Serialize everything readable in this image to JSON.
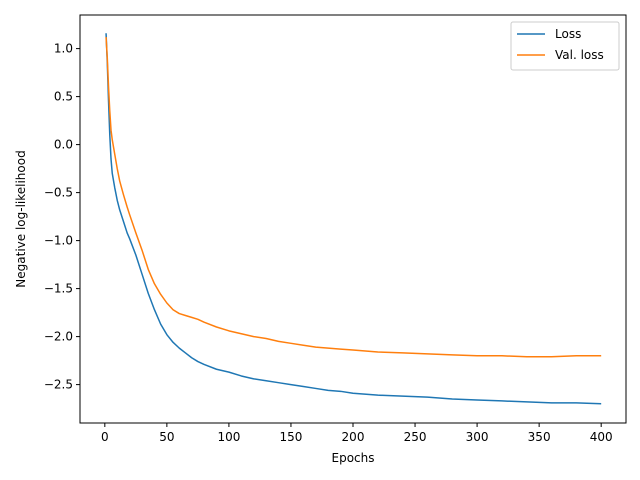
{
  "chart_data": {
    "type": "line",
    "title": "",
    "xlabel": "Epochs",
    "ylabel": "Negative log-likelihood",
    "xlim": [
      -20,
      420
    ],
    "ylim": [
      -2.9,
      1.35
    ],
    "xticks": [
      0,
      50,
      100,
      150,
      200,
      250,
      300,
      350,
      400
    ],
    "yticks": [
      1.0,
      0.5,
      0.0,
      -0.5,
      -1.0,
      -1.5,
      -2.0,
      -2.5
    ],
    "ytick_labels": [
      "1.0",
      "0.5",
      "0.0",
      "−0.5",
      "−1.0",
      "−1.5",
      "−2.0",
      "−2.5"
    ],
    "grid": false,
    "legend_position": "top-right",
    "series": [
      {
        "name": "Loss",
        "color": "#1f77b4",
        "x": [
          1,
          2,
          3,
          4,
          5,
          6,
          8,
          10,
          12,
          15,
          18,
          20,
          25,
          30,
          35,
          40,
          45,
          50,
          55,
          60,
          65,
          70,
          75,
          80,
          90,
          100,
          110,
          120,
          130,
          140,
          150,
          160,
          170,
          180,
          190,
          200,
          220,
          240,
          260,
          280,
          300,
          320,
          340,
          360,
          380,
          400
        ],
        "values": [
          1.16,
          0.85,
          0.45,
          0.1,
          -0.15,
          -0.3,
          -0.45,
          -0.58,
          -0.68,
          -0.8,
          -0.92,
          -0.98,
          -1.15,
          -1.35,
          -1.55,
          -1.72,
          -1.87,
          -1.98,
          -2.06,
          -2.12,
          -2.17,
          -2.22,
          -2.26,
          -2.29,
          -2.34,
          -2.37,
          -2.41,
          -2.44,
          -2.46,
          -2.48,
          -2.5,
          -2.52,
          -2.54,
          -2.56,
          -2.57,
          -2.59,
          -2.61,
          -2.62,
          -2.63,
          -2.65,
          -2.66,
          -2.67,
          -2.68,
          -2.69,
          -2.69,
          -2.7
        ]
      },
      {
        "name": "Val. loss",
        "color": "#ff7f0e",
        "x": [
          1,
          2,
          3,
          4,
          5,
          6,
          8,
          10,
          12,
          15,
          18,
          20,
          25,
          30,
          35,
          40,
          45,
          50,
          55,
          60,
          65,
          70,
          75,
          80,
          90,
          100,
          110,
          120,
          130,
          140,
          150,
          160,
          170,
          180,
          190,
          200,
          220,
          240,
          260,
          280,
          300,
          320,
          340,
          360,
          380,
          400
        ],
        "values": [
          1.12,
          0.9,
          0.6,
          0.35,
          0.15,
          0.05,
          -0.1,
          -0.25,
          -0.38,
          -0.52,
          -0.65,
          -0.73,
          -0.92,
          -1.1,
          -1.3,
          -1.45,
          -1.56,
          -1.65,
          -1.72,
          -1.76,
          -1.78,
          -1.8,
          -1.82,
          -1.85,
          -1.9,
          -1.94,
          -1.97,
          -2.0,
          -2.02,
          -2.05,
          -2.07,
          -2.09,
          -2.11,
          -2.12,
          -2.13,
          -2.14,
          -2.16,
          -2.17,
          -2.18,
          -2.19,
          -2.2,
          -2.2,
          -2.21,
          -2.21,
          -2.2,
          -2.2
        ]
      }
    ]
  }
}
